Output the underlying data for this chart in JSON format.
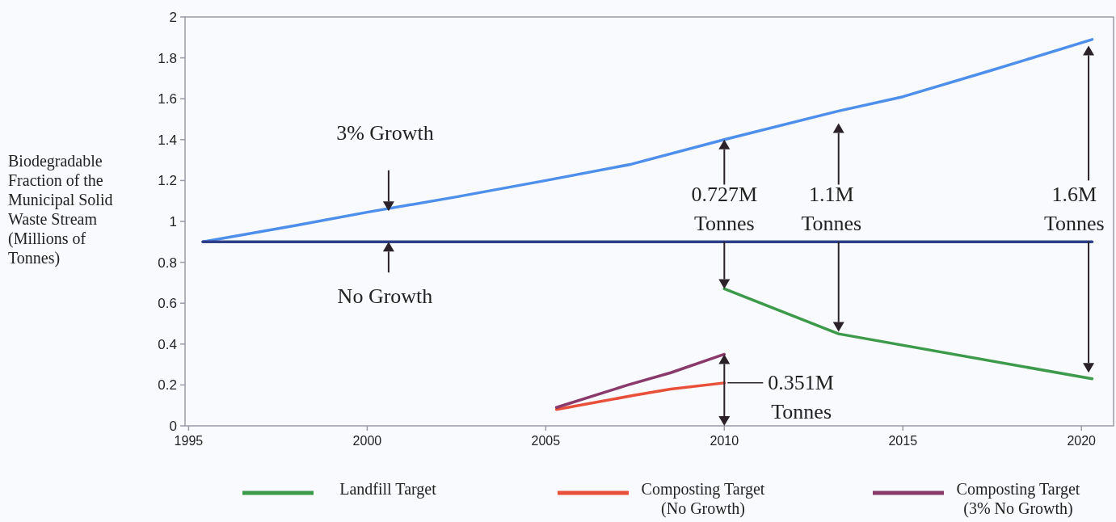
{
  "chart_data": {
    "type": "line",
    "ylabel": "Biodegradable Fraction of the Municipal Solid Waste Stream (Millions of Tonnes)",
    "xlim": [
      1994.9,
      2020.9
    ],
    "xticks": [
      1995,
      2000,
      2005,
      2010,
      2015,
      2020
    ],
    "ylim": [
      0,
      2
    ],
    "yticks": [
      0,
      0.2,
      0.4,
      0.6,
      0.8,
      1,
      1.2,
      1.4,
      1.6,
      1.8,
      2
    ],
    "grid": false,
    "legend": "bottom",
    "marker": "none",
    "line_style": "solid",
    "series": [
      {
        "color": "#4d8fea",
        "x": [
          1995.4,
          1998,
          2000,
          2002.5,
          2005,
          2007.4,
          2010,
          2013.2,
          2015,
          2017.5,
          2020.3
        ],
        "values": [
          0.9,
          0.98,
          1.045,
          1.12,
          1.2,
          1.28,
          1.4,
          1.54,
          1.61,
          1.74,
          1.89
        ]
      },
      {
        "color": "#2e3f8a",
        "x": [
          1995.4,
          2020.3
        ],
        "values": [
          0.9,
          0.9
        ]
      },
      {
        "name": "Landfill Target",
        "color": "#3c9a4a",
        "x": [
          2010,
          2013.2,
          2020.3
        ],
        "values": [
          0.67,
          0.45,
          0.23
        ]
      },
      {
        "name": "Composting Target (No Growth)",
        "color": "#e8503a",
        "x": [
          2005.3,
          2007.5,
          2008.5,
          2010
        ],
        "values": [
          0.08,
          0.15,
          0.18,
          0.21
        ]
      },
      {
        "name": "Composting Target (3% No Growth)",
        "color": "#8a3a6a",
        "x": [
          2005.3,
          2007.3,
          2008.5,
          2010
        ],
        "values": [
          0.09,
          0.2,
          0.26,
          0.35
        ]
      }
    ],
    "annotations": [
      "3% Growth",
      "No Growth",
      "0.727M Tonnes",
      "1.1M Tonnes",
      "1.6M Tonnes",
      {
        "text": "0.351M Tonnes",
        "x": 2010,
        "y": 0.21
      }
    ]
  }
}
